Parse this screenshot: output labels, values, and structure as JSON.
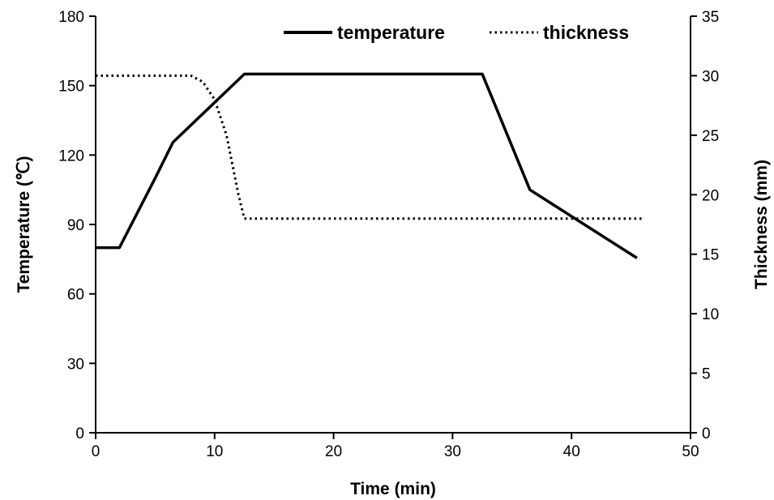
{
  "chart_data": {
    "type": "line",
    "xlabel": "Time (min)",
    "ylabel_left": "Temperature (℃)",
    "ylabel_right": "Thickness (mm)",
    "xlim": [
      0,
      50
    ],
    "ylim_left": [
      0,
      180
    ],
    "ylim_right": [
      0,
      35
    ],
    "x_ticks": [
      0,
      10,
      20,
      30,
      40,
      50
    ],
    "y_left_ticks": [
      0,
      30,
      60,
      90,
      120,
      150,
      180
    ],
    "y_right_ticks": [
      0,
      5,
      10,
      15,
      20,
      25,
      30,
      35
    ],
    "grid": false,
    "legend_position": "top",
    "series": [
      {
        "name": "temperature",
        "axis": "left",
        "style": "solid",
        "color": "#000000",
        "x": [
          0,
          2,
          5,
          6.5,
          12.5,
          32.5,
          36.5,
          45.5
        ],
        "y": [
          80,
          80,
          110,
          125.5,
          155,
          155,
          105,
          75.5
        ]
      },
      {
        "name": "thickness",
        "axis": "right",
        "style": "dotted",
        "color": "#000000",
        "x": [
          0,
          8,
          9,
          10,
          11,
          12,
          12.5,
          46
        ],
        "y": [
          30,
          30,
          29.5,
          28,
          25,
          20,
          18,
          18
        ]
      }
    ]
  }
}
